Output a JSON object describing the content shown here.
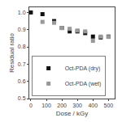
{
  "chart_data": {
    "type": "scatter",
    "xlabel": "Dose / kGy",
    "ylabel": "Residual ratio",
    "series": [
      {
        "name": "Oct-PDA (dry)",
        "color": "#111111",
        "marker": "square",
        "x": [
          0,
          75,
          150,
          200,
          250,
          300,
          350,
          400,
          450,
          500
        ],
        "values": [
          1.0,
          0.99,
          0.95,
          0.91,
          0.89,
          0.89,
          0.88,
          0.86,
          0.855,
          0.86
        ]
      },
      {
        "name": "Oct-PDA (wet)",
        "color": "#999999",
        "marker": "square",
        "x": [
          75,
          150,
          200,
          250,
          300,
          350,
          400,
          450,
          500
        ],
        "values": [
          0.945,
          0.94,
          0.91,
          0.905,
          0.895,
          0.89,
          0.835,
          0.86,
          0.858
        ]
      }
    ],
    "xlim": [
      -10,
      540
    ],
    "ylim": [
      0.5,
      1.03
    ],
    "xticks": [
      0,
      100,
      200,
      300,
      400,
      500
    ],
    "yticks": [
      0.5,
      0.6,
      0.7,
      0.8,
      0.9,
      {
        "value": 1.0,
        "label": "1.0"
      }
    ],
    "grid": false,
    "legend": "lower left"
  }
}
